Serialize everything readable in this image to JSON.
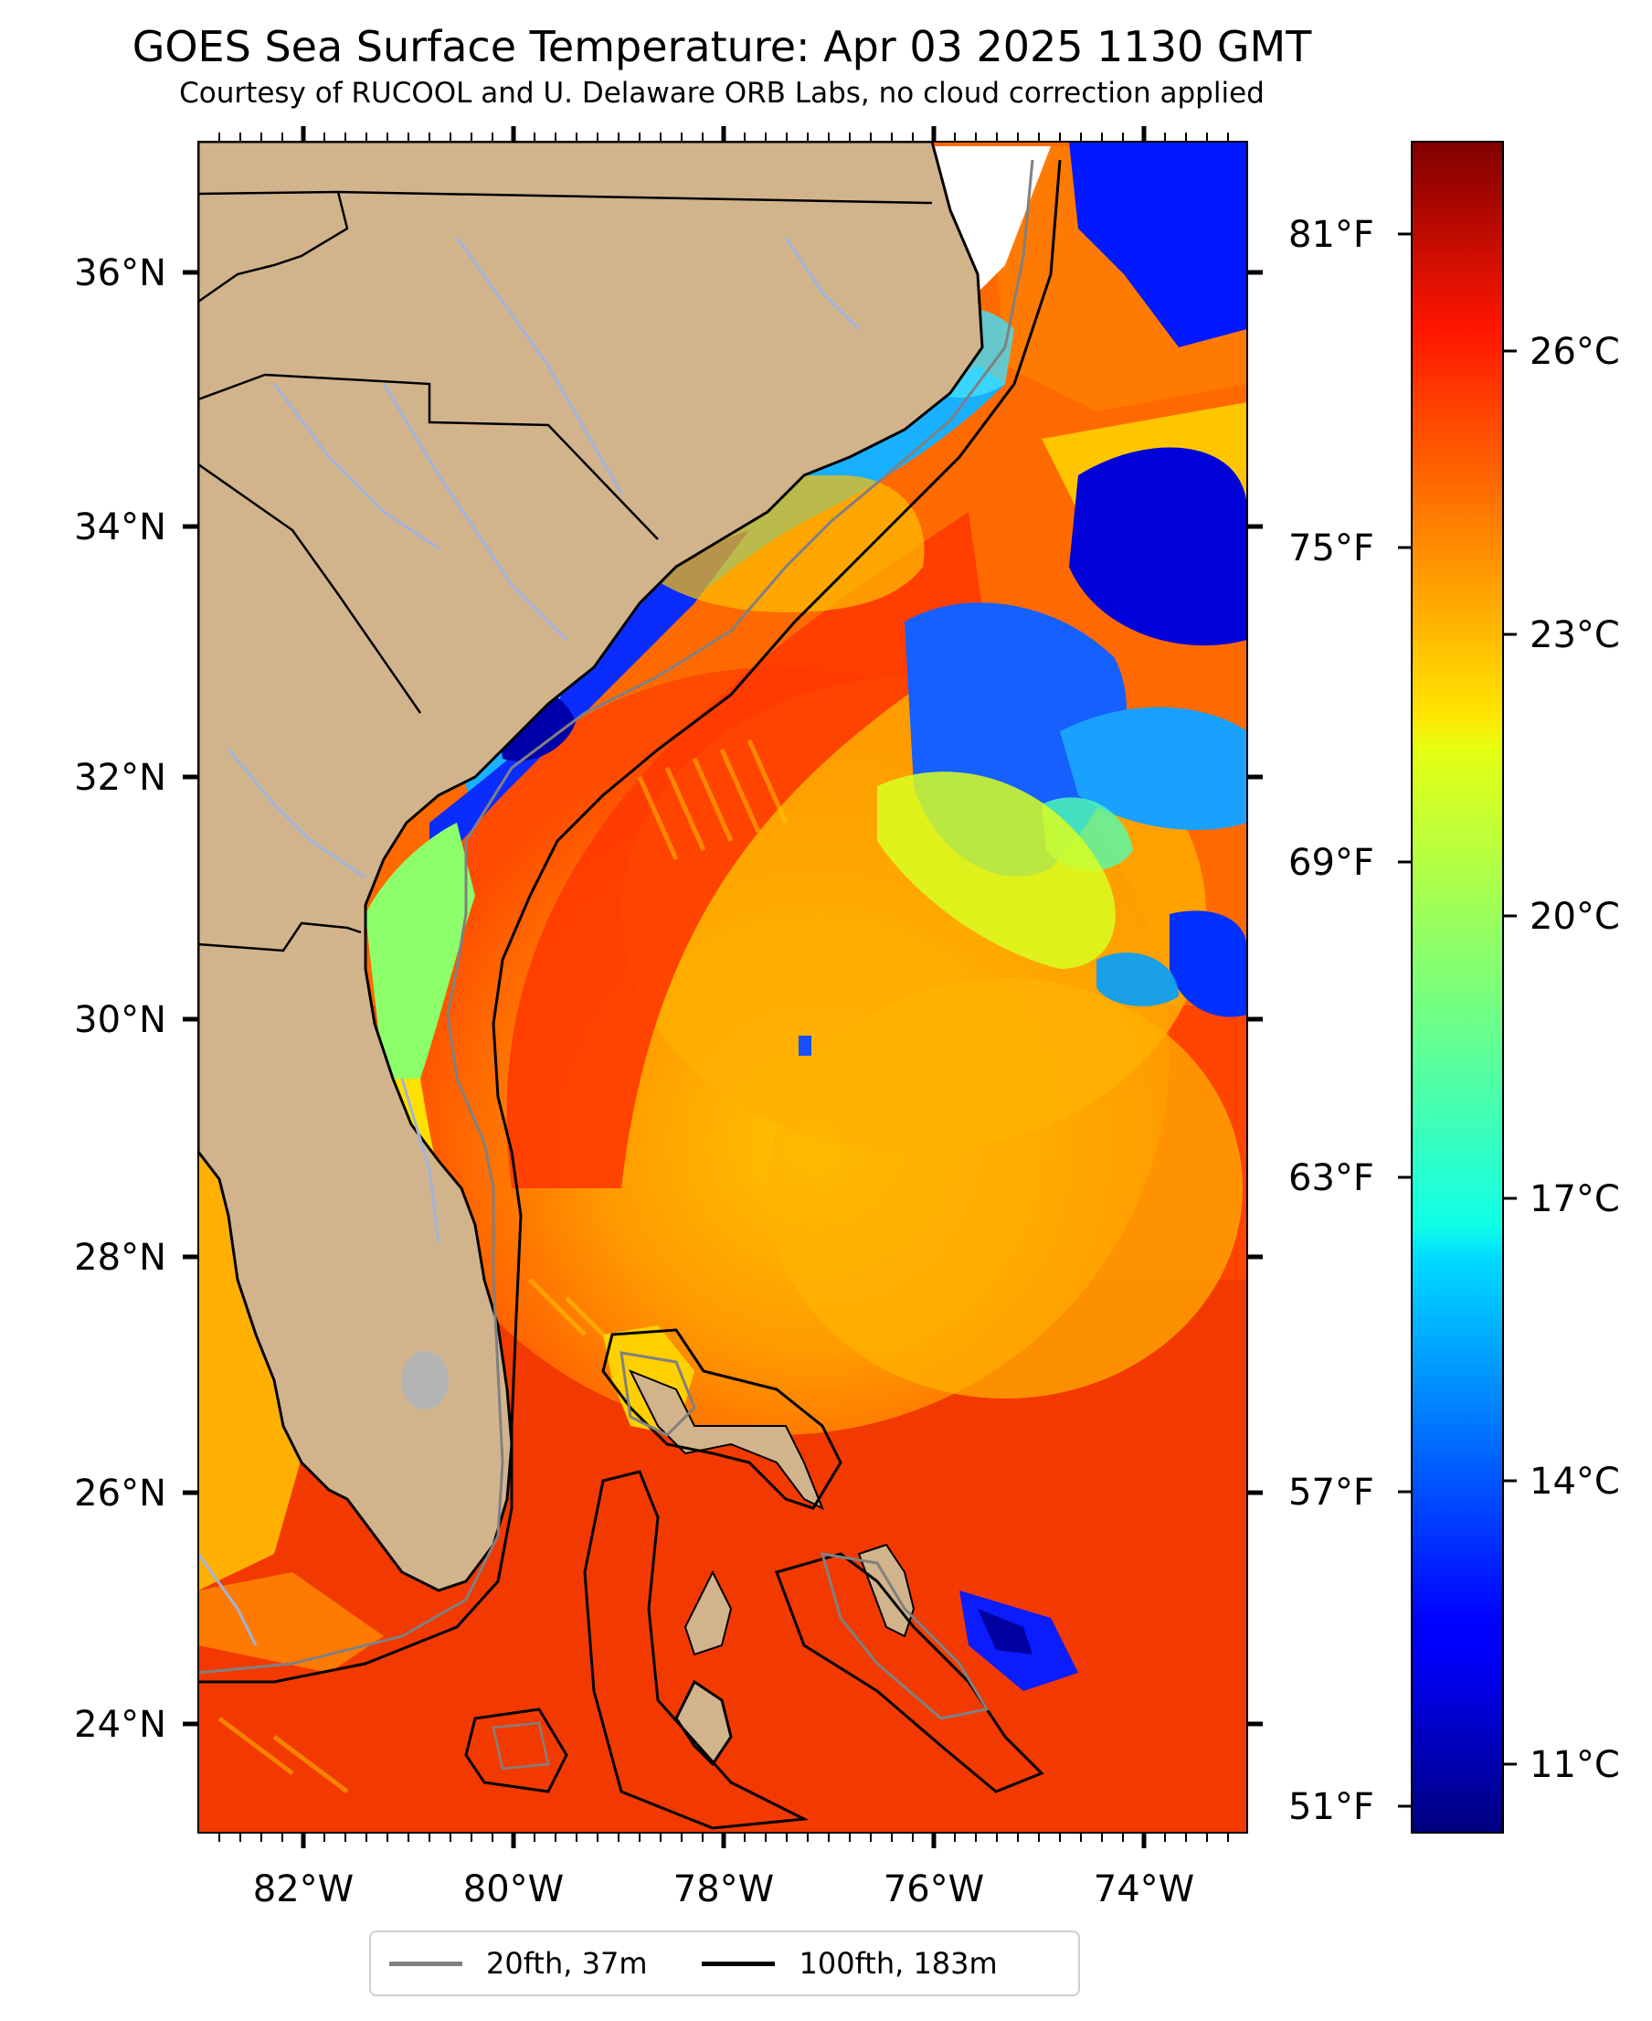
{
  "title": "GOES Sea Surface Temperature: Apr 03 2025 1130 GMT",
  "subtitle": "Courtesy of RUCOOL and U. Delaware ORB Labs, no cloud correction applied",
  "map": {
    "longitude_labels": [
      "82°W",
      "80°W",
      "78°W",
      "76°W",
      "74°W"
    ],
    "latitude_labels": [
      "36°N",
      "34°N",
      "32°N",
      "30°N",
      "28°N",
      "26°N",
      "24°N"
    ],
    "fahrenheit_labels": [
      "81°F",
      "75°F",
      "69°F",
      "63°F",
      "57°F",
      "51°F"
    ],
    "colorbar_labels": [
      "26°C",
      "23°C",
      "20°C",
      "17°C",
      "14°C",
      "11°C"
    ],
    "colors": {
      "land": "#d2b48c",
      "rivers": "#a0b4dc",
      "lake": "#b4b4b4",
      "coast": "#000000",
      "isobath_20": "#808080",
      "isobath_100": "#000000"
    }
  },
  "legend": {
    "item1": "20fth, 37m",
    "item2": "100fth, 183m"
  }
}
